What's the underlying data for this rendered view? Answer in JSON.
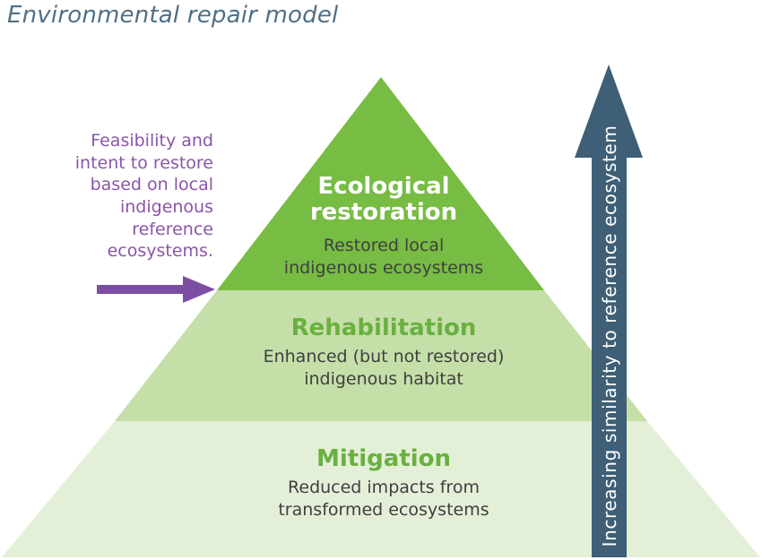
{
  "title": "Environmental repair model",
  "left_note": {
    "lines": [
      "Feasibility and",
      "intent to restore",
      "based on local",
      "indigenous",
      "reference",
      "ecosystems."
    ]
  },
  "tiers": {
    "top": {
      "heading_lines": [
        "Ecological",
        "restoration"
      ],
      "description_lines": [
        "Restored local",
        "indigenous ecosystems"
      ]
    },
    "middle": {
      "heading": "Rehabilitation",
      "description_lines": [
        "Enhanced (but not restored)",
        "indigenous habitat"
      ]
    },
    "bottom": {
      "heading": "Mitigation",
      "description_lines": [
        "Reduced impacts from",
        "transformed ecosystems"
      ]
    }
  },
  "axis_arrow": {
    "label": "Increasing similarity to reference ecosystem"
  },
  "colors": {
    "top_tier": "#77bc43",
    "middle_tier": "#c5dfa9",
    "bottom_tier": "#e4efd8",
    "heading_green": "#6ab040",
    "axis_arrow": "#3e5f76",
    "note_purple": "#8a55a8",
    "title": "#4f6f86"
  }
}
